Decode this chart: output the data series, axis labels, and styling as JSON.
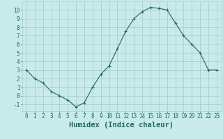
{
  "x": [
    0,
    1,
    2,
    3,
    4,
    5,
    6,
    7,
    8,
    9,
    10,
    11,
    12,
    13,
    14,
    15,
    16,
    17,
    18,
    19,
    20,
    21,
    22,
    23
  ],
  "y": [
    3,
    2,
    1.5,
    0.5,
    0,
    -0.5,
    -1.3,
    -0.8,
    1,
    2.5,
    3.5,
    5.5,
    7.5,
    9,
    9.8,
    10.3,
    10.2,
    10,
    8.5,
    7,
    6,
    5,
    3,
    3
  ],
  "line_color": "#1a6b5a",
  "marker": "+",
  "bg_color": "#c8eaea",
  "grid_color": "#aacece",
  "xlabel": "Humidex (Indice chaleur)",
  "xlabel_color": "#1a6b5a",
  "ylabel_ticks": [
    -1,
    0,
    1,
    2,
    3,
    4,
    5,
    6,
    7,
    8,
    9,
    10
  ],
  "xlim": [
    -0.5,
    23.5
  ],
  "ylim": [
    -1.8,
    11.0
  ],
  "xticks": [
    0,
    1,
    2,
    3,
    4,
    5,
    6,
    7,
    8,
    9,
    10,
    11,
    12,
    13,
    14,
    15,
    16,
    17,
    18,
    19,
    20,
    21,
    22,
    23
  ],
  "tick_label_size": 5.5,
  "xlabel_size": 7.5
}
